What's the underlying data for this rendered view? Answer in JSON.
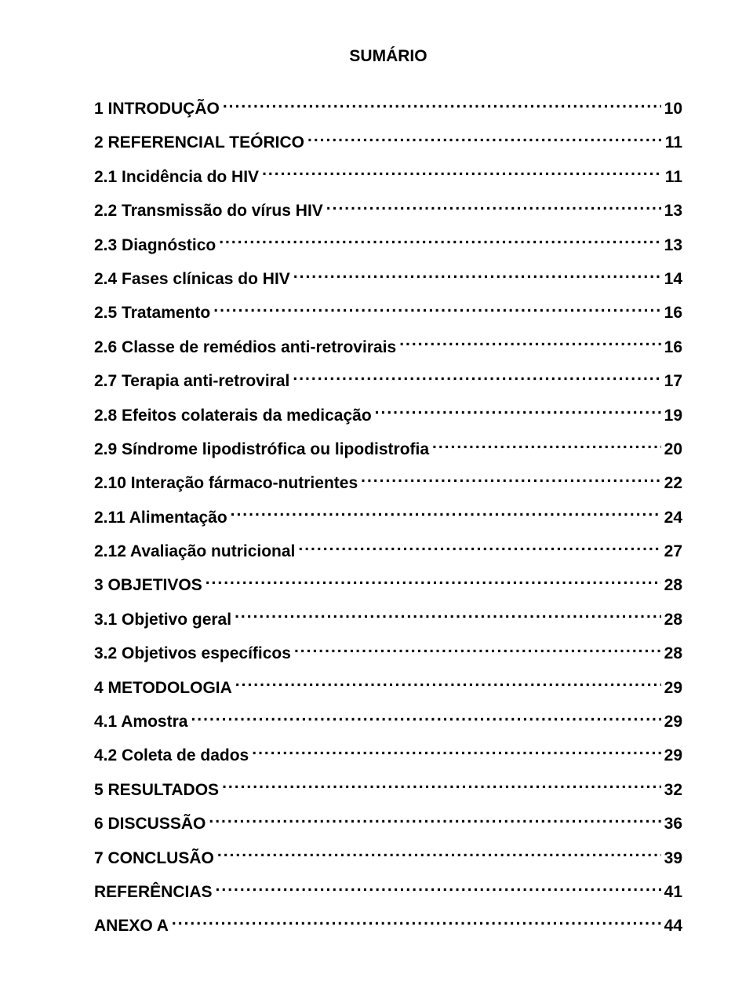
{
  "title": "SUMÁRIO",
  "font_family": "Arial",
  "font_size_pt": 16,
  "text_color": "#000000",
  "background_color": "#ffffff",
  "toc": [
    {
      "label": "1 INTRODUÇÃO",
      "page": "10"
    },
    {
      "label": "2 REFERENCIAL TEÓRICO",
      "page": "11"
    },
    {
      "label": "2.1 Incidência do HIV",
      "page": "11"
    },
    {
      "label": "2.2 Transmissão do vírus HIV",
      "page": "13"
    },
    {
      "label": "2.3 Diagnóstico",
      "page": "13"
    },
    {
      "label": "2.4 Fases clínicas do HIV",
      "page": "14"
    },
    {
      "label": "2.5 Tratamento",
      "page": "16"
    },
    {
      "label": "2.6 Classe de remédios anti-retrovirais",
      "page": "16"
    },
    {
      "label": "2.7 Terapia anti-retroviral",
      "page": "17"
    },
    {
      "label": "2.8 Efeitos colaterais da medicação",
      "page": "19"
    },
    {
      "label": "2.9 Síndrome lipodistrófica ou lipodistrofia",
      "page": "20"
    },
    {
      "label": "2.10 Interação fármaco-nutrientes",
      "page": "22"
    },
    {
      "label": "2.11 Alimentação",
      "page": "24"
    },
    {
      "label": "2.12 Avaliação nutricional",
      "page": "27"
    },
    {
      "label": "3 OBJETIVOS",
      "page": "28"
    },
    {
      "label": "3.1 Objetivo geral",
      "page": "28"
    },
    {
      "label": "3.2 Objetivos específicos",
      "page": "28"
    },
    {
      "label": "4 METODOLOGIA",
      "page": "29"
    },
    {
      "label": "4.1 Amostra",
      "page": "29"
    },
    {
      "label": "4.2 Coleta de dados",
      "page": "29"
    },
    {
      "label": "5 RESULTADOS",
      "page": "32"
    },
    {
      "label": "6 DISCUSSÃO",
      "page": "36"
    },
    {
      "label": "7 CONCLUSÃO",
      "page": "39"
    },
    {
      "label": "REFERÊNCIAS",
      "page": "41"
    },
    {
      "label": "ANEXO A",
      "page": "44"
    }
  ]
}
